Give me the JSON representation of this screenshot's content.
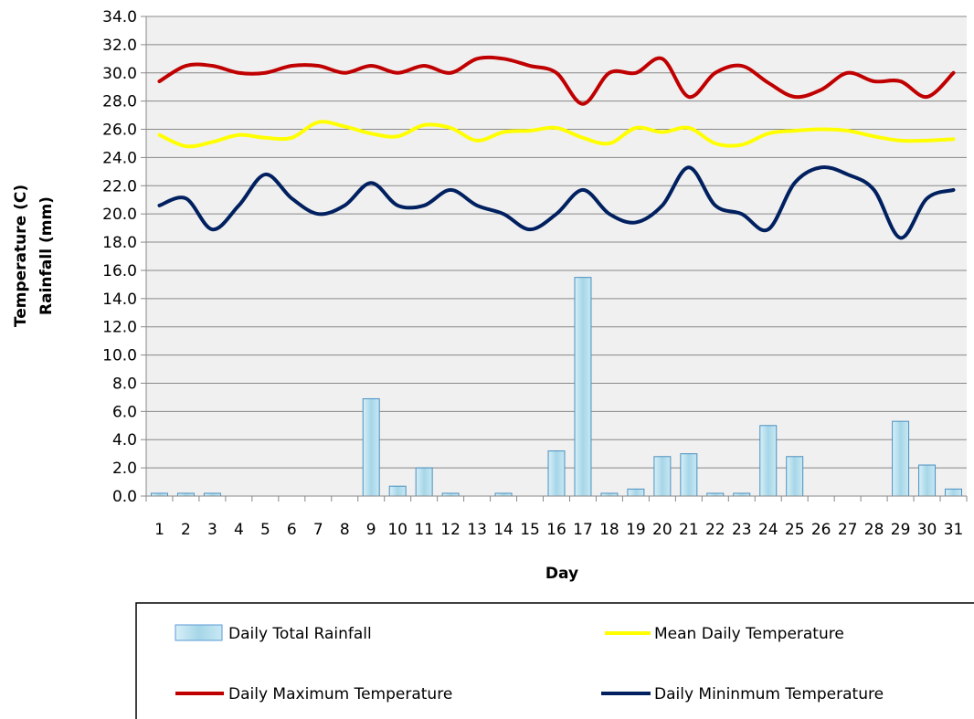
{
  "chart_data": {
    "type": "bar",
    "xlabel": "Day",
    "ylabel_lines": [
      "Temperature (C)",
      "Rainfall (mm)"
    ],
    "ylim": [
      0,
      34
    ],
    "ytick_step": 2,
    "ytick_labels": [
      "0.0",
      "2.0",
      "4.0",
      "6.0",
      "8.0",
      "10.0",
      "12.0",
      "14.0",
      "16.0",
      "18.0",
      "20.0",
      "22.0",
      "24.0",
      "26.0",
      "28.0",
      "30.0",
      "32.0",
      "34.0"
    ],
    "grid": "horizontal",
    "legend_position": "bottom",
    "categories": [
      "1",
      "2",
      "3",
      "4",
      "5",
      "6",
      "7",
      "8",
      "9",
      "10",
      "11",
      "12",
      "13",
      "14",
      "15",
      "16",
      "17",
      "18",
      "19",
      "20",
      "21",
      "22",
      "23",
      "24",
      "25",
      "26",
      "27",
      "28",
      "29",
      "30",
      "31"
    ],
    "series": [
      {
        "name": "Daily Total Rainfall",
        "kind": "bar",
        "color": "#a8d8e8",
        "values": [
          0.2,
          0.2,
          0.2,
          0,
          0,
          0,
          0,
          0,
          6.9,
          0.7,
          2.0,
          0.2,
          0,
          0.2,
          0,
          3.2,
          15.5,
          0.2,
          0.5,
          2.8,
          3.0,
          0.2,
          0.2,
          5.0,
          2.8,
          0,
          0,
          0,
          5.3,
          2.2,
          0.5
        ]
      },
      {
        "name": "Mean Daily Temperature",
        "kind": "line",
        "color": "#ffff00",
        "values": [
          25.6,
          24.8,
          25.1,
          25.6,
          25.4,
          25.4,
          26.5,
          26.2,
          25.7,
          25.5,
          26.3,
          26.1,
          25.2,
          25.8,
          25.9,
          26.1,
          25.4,
          25.0,
          26.1,
          25.8,
          26.1,
          25.0,
          24.9,
          25.7,
          25.9,
          26.0,
          25.9,
          25.5,
          25.2,
          25.2,
          25.3
        ]
      },
      {
        "name": "Daily Maximum Temperature",
        "kind": "line",
        "color": "#c00000",
        "values": [
          29.4,
          30.5,
          30.5,
          30.0,
          30.0,
          30.5,
          30.5,
          30.0,
          30.5,
          30.0,
          30.5,
          30.0,
          31.0,
          31.0,
          30.5,
          30.0,
          27.8,
          30.0,
          30.0,
          31.0,
          28.3,
          30.0,
          30.5,
          29.3,
          28.3,
          28.8,
          30.0,
          29.4,
          29.4,
          28.3,
          30.0
        ]
      },
      {
        "name": "Daily Mininmum Temperature",
        "kind": "line",
        "color": "#002060",
        "values": [
          20.6,
          21.1,
          18.9,
          20.6,
          22.8,
          21.1,
          20.0,
          20.6,
          22.2,
          20.6,
          20.6,
          21.7,
          20.6,
          20.0,
          18.9,
          20.0,
          21.7,
          20.0,
          19.4,
          20.6,
          23.3,
          20.6,
          20.0,
          18.9,
          22.2,
          23.3,
          22.8,
          21.7,
          18.3,
          21.1,
          21.7
        ]
      }
    ]
  }
}
